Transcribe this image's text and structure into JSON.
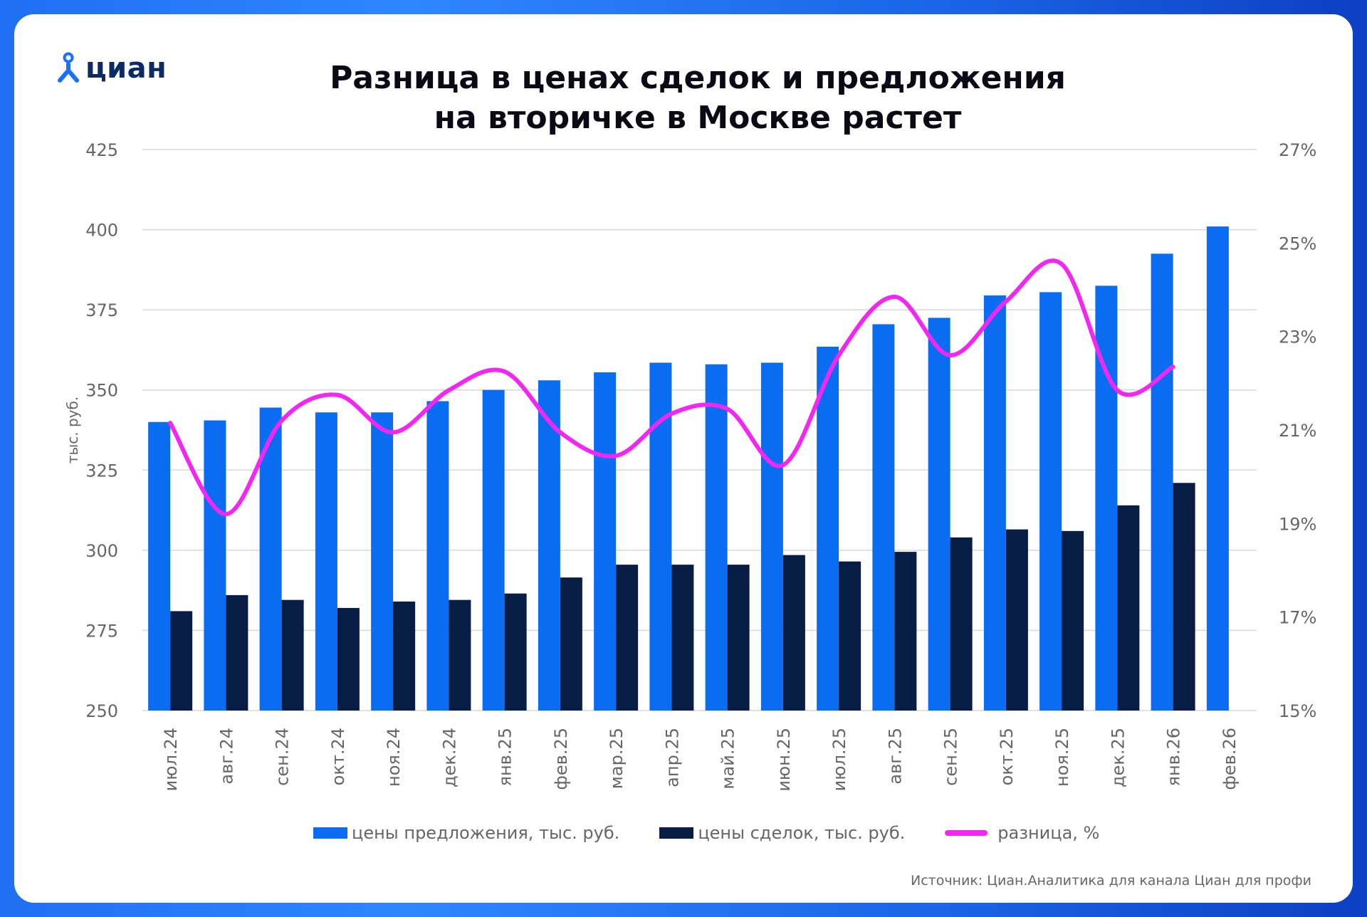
{
  "brand": {
    "name": "циан",
    "icon": "location-pin-person-icon",
    "color": "#1a6fff"
  },
  "title_line1": "Разница в ценах сделок и предложения",
  "title_line2": "на вторичке в Москве растет",
  "source": "Источник: Циан.Аналитика для канала Циан для профи",
  "colors": {
    "offer": "#0a6cf0",
    "deal": "#071d44",
    "diff": "#f228f2",
    "grid": "#d8d8d8",
    "axis_text": "#666666"
  },
  "legend": {
    "offer_label": "цены предложения, тыс. руб.",
    "deal_label": "цены сделок, тыс. руб.",
    "diff_label": "разница, %"
  },
  "chart_data": {
    "type": "bar",
    "categories": [
      "июл.24",
      "авг.24",
      "сен.24",
      "окт.24",
      "ноя.24",
      "дек.24",
      "янв.25",
      "фев.25",
      "мар.25",
      "апр.25",
      "май.25",
      "июн.25",
      "июл.25",
      "авг.25",
      "сен.25",
      "окт.25",
      "ноя.25",
      "дек.25",
      "янв.26",
      "фев.26"
    ],
    "series": [
      {
        "name": "цены предложения, тыс. руб.",
        "type": "bar",
        "axis": "left",
        "values": [
          340,
          340.5,
          344.5,
          343,
          343,
          346.5,
          350,
          353,
          355.5,
          358.5,
          358,
          358.5,
          363.5,
          370.5,
          372.5,
          379.5,
          380.5,
          382.5,
          392.5,
          401
        ]
      },
      {
        "name": "цены сделок, тыс. руб.",
        "type": "bar",
        "axis": "left",
        "values": [
          281,
          286,
          284.5,
          282,
          284,
          284.5,
          286.5,
          291.5,
          295.5,
          295.5,
          295.5,
          298.5,
          296.5,
          299.5,
          304,
          306.5,
          306,
          314,
          321,
          null
        ]
      },
      {
        "name": "разница, %",
        "type": "line",
        "axis": "right",
        "values": [
          21.15,
          19.2,
          21.2,
          21.75,
          20.95,
          21.85,
          22.25,
          20.95,
          20.45,
          21.35,
          21.45,
          20.25,
          22.6,
          23.85,
          22.6,
          23.75,
          24.55,
          21.85,
          22.35,
          null
        ]
      }
    ],
    "ylabel": "тыс. руб.",
    "ylim": [
      250,
      425
    ],
    "yticks": [
      "250",
      "275",
      "300",
      "325",
      "350",
      "375",
      "400",
      "425"
    ],
    "ylim_right": [
      15,
      27
    ],
    "yticks_right": [
      "15%",
      "17%",
      "19%",
      "21%",
      "23%",
      "25%",
      "27%"
    ],
    "grid": true,
    "legend_position": "bottom"
  }
}
